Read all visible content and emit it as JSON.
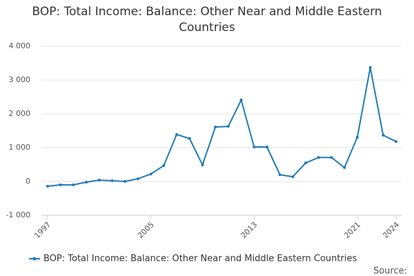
{
  "chart_data": {
    "type": "line",
    "title": "BOP: Total Income: Balance: Other Near and Middle Eastern Countries",
    "x": [
      1997,
      1998,
      1999,
      2000,
      2001,
      2002,
      2003,
      2004,
      2005,
      2006,
      2007,
      2008,
      2009,
      2010,
      2011,
      2012,
      2013,
      2014,
      2015,
      2016,
      2017,
      2018,
      2019,
      2020,
      2021,
      2022,
      2023,
      2024
    ],
    "series": [
      {
        "name": "BOP: Total Income: Balance: Other Near and Middle Eastern Countries",
        "color": "#1f7ab8",
        "values": [
          -140,
          -100,
          -100,
          -20,
          40,
          20,
          0,
          80,
          220,
          470,
          1390,
          1270,
          490,
          1610,
          1630,
          2410,
          1020,
          1020,
          200,
          140,
          550,
          710,
          710,
          410,
          1310,
          3370,
          1370,
          1180
        ]
      }
    ],
    "xlim": [
      1997,
      2024
    ],
    "xticks": [
      1997,
      2005,
      2013,
      2021,
      2024
    ],
    "ylim": [
      -1000,
      4000
    ],
    "yticks": [
      {
        "value": -1000,
        "label": "-1 000"
      },
      0,
      {
        "value": 1000,
        "label": "1 000"
      },
      {
        "value": 2000,
        "label": "2 000"
      },
      {
        "value": 3000,
        "label": "3 000"
      },
      {
        "value": 4000,
        "label": "4 000"
      }
    ],
    "grid": true,
    "source_label": "Source:"
  }
}
